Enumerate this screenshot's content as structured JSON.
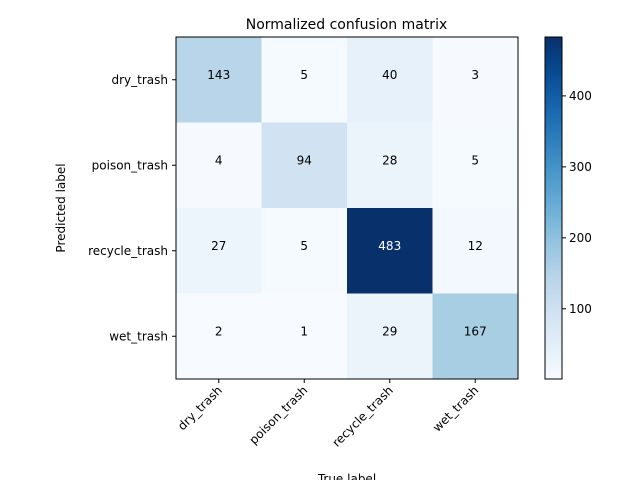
{
  "chart_data": {
    "type": "heatmap",
    "title": "Normalized confusion matrix",
    "xlabel": "True label",
    "ylabel": "Predicted label",
    "x_categories": [
      "dry_trash",
      "poison_trash",
      "recycle_trash",
      "wet_trash"
    ],
    "y_categories": [
      "dry_trash",
      "poison_trash",
      "recycle_trash",
      "wet_trash"
    ],
    "values": [
      [
        143,
        5,
        40,
        3
      ],
      [
        4,
        94,
        28,
        5
      ],
      [
        27,
        5,
        483,
        12
      ],
      [
        2,
        1,
        29,
        167
      ]
    ],
    "colormap": "Blues",
    "color_range": [
      1,
      483
    ],
    "colorbar_ticks": [
      "100",
      "200",
      "300",
      "400"
    ],
    "colorbar_tick_values": [
      100,
      200,
      300,
      400
    ],
    "grid": false
  }
}
